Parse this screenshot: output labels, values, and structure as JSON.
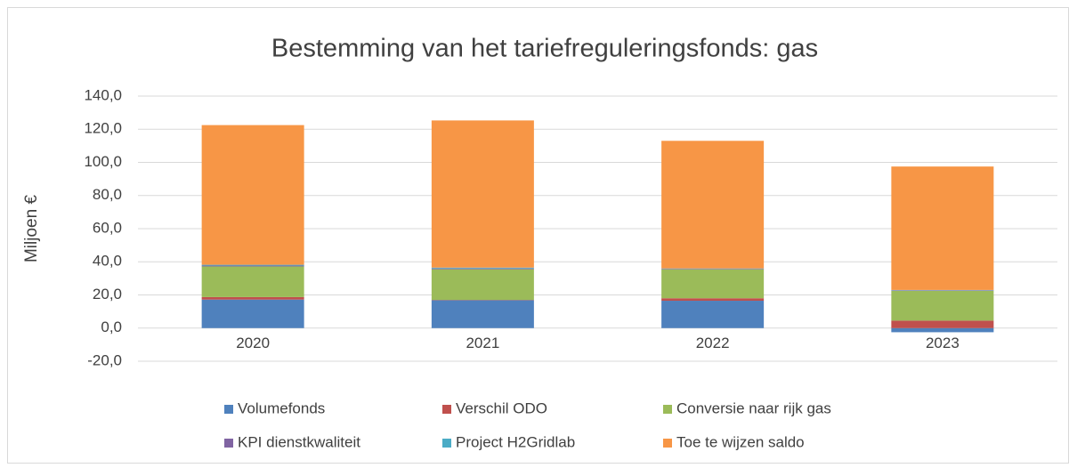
{
  "chart_data": {
    "type": "bar",
    "stacked": true,
    "title": "Bestemming van het tariefreguleringsfonds: gas",
    "y_label": "Miljoen €",
    "categories": [
      "2020",
      "2021",
      "2022",
      "2023"
    ],
    "series": [
      {
        "name": "Volumefonds",
        "color": "#4f81bd",
        "values": [
          17.2,
          16.8,
          16.5,
          -2.5
        ]
      },
      {
        "name": "Verschil ODO",
        "color": "#c0504d",
        "values": [
          1.5,
          0.2,
          1.5,
          4.5
        ]
      },
      {
        "name": "Conversie naar rijk gas",
        "color": "#9bbb59",
        "values": [
          18.5,
          18.5,
          17.5,
          18
        ]
      },
      {
        "name": "KPI dienstkwaliteit",
        "color": "#8064a2",
        "values": [
          0.5,
          0.5,
          0.3,
          0.3
        ]
      },
      {
        "name": "Project H2Gridlab",
        "color": "#4bacc6",
        "values": [
          0.5,
          0.5,
          0.2,
          0.2
        ]
      },
      {
        "name": "Toe te wijzen saldo",
        "color": "#f79646",
        "values": [
          84.3,
          88.8,
          77,
          74.5
        ]
      }
    ],
    "ylim": [
      -20,
      140
    ],
    "yticks": [
      {
        "value": -20,
        "label": "-20,0"
      },
      {
        "value": 0,
        "label": "0,0"
      },
      {
        "value": 20,
        "label": "20,0"
      },
      {
        "value": 40,
        "label": "40,0"
      },
      {
        "value": 60,
        "label": "60,0"
      },
      {
        "value": 80,
        "label": "80,0"
      },
      {
        "value": 100,
        "label": "100,0"
      },
      {
        "value": 120,
        "label": "120,0"
      },
      {
        "value": 140,
        "label": "140,0"
      }
    ],
    "grid": true,
    "legend": "bottom"
  }
}
